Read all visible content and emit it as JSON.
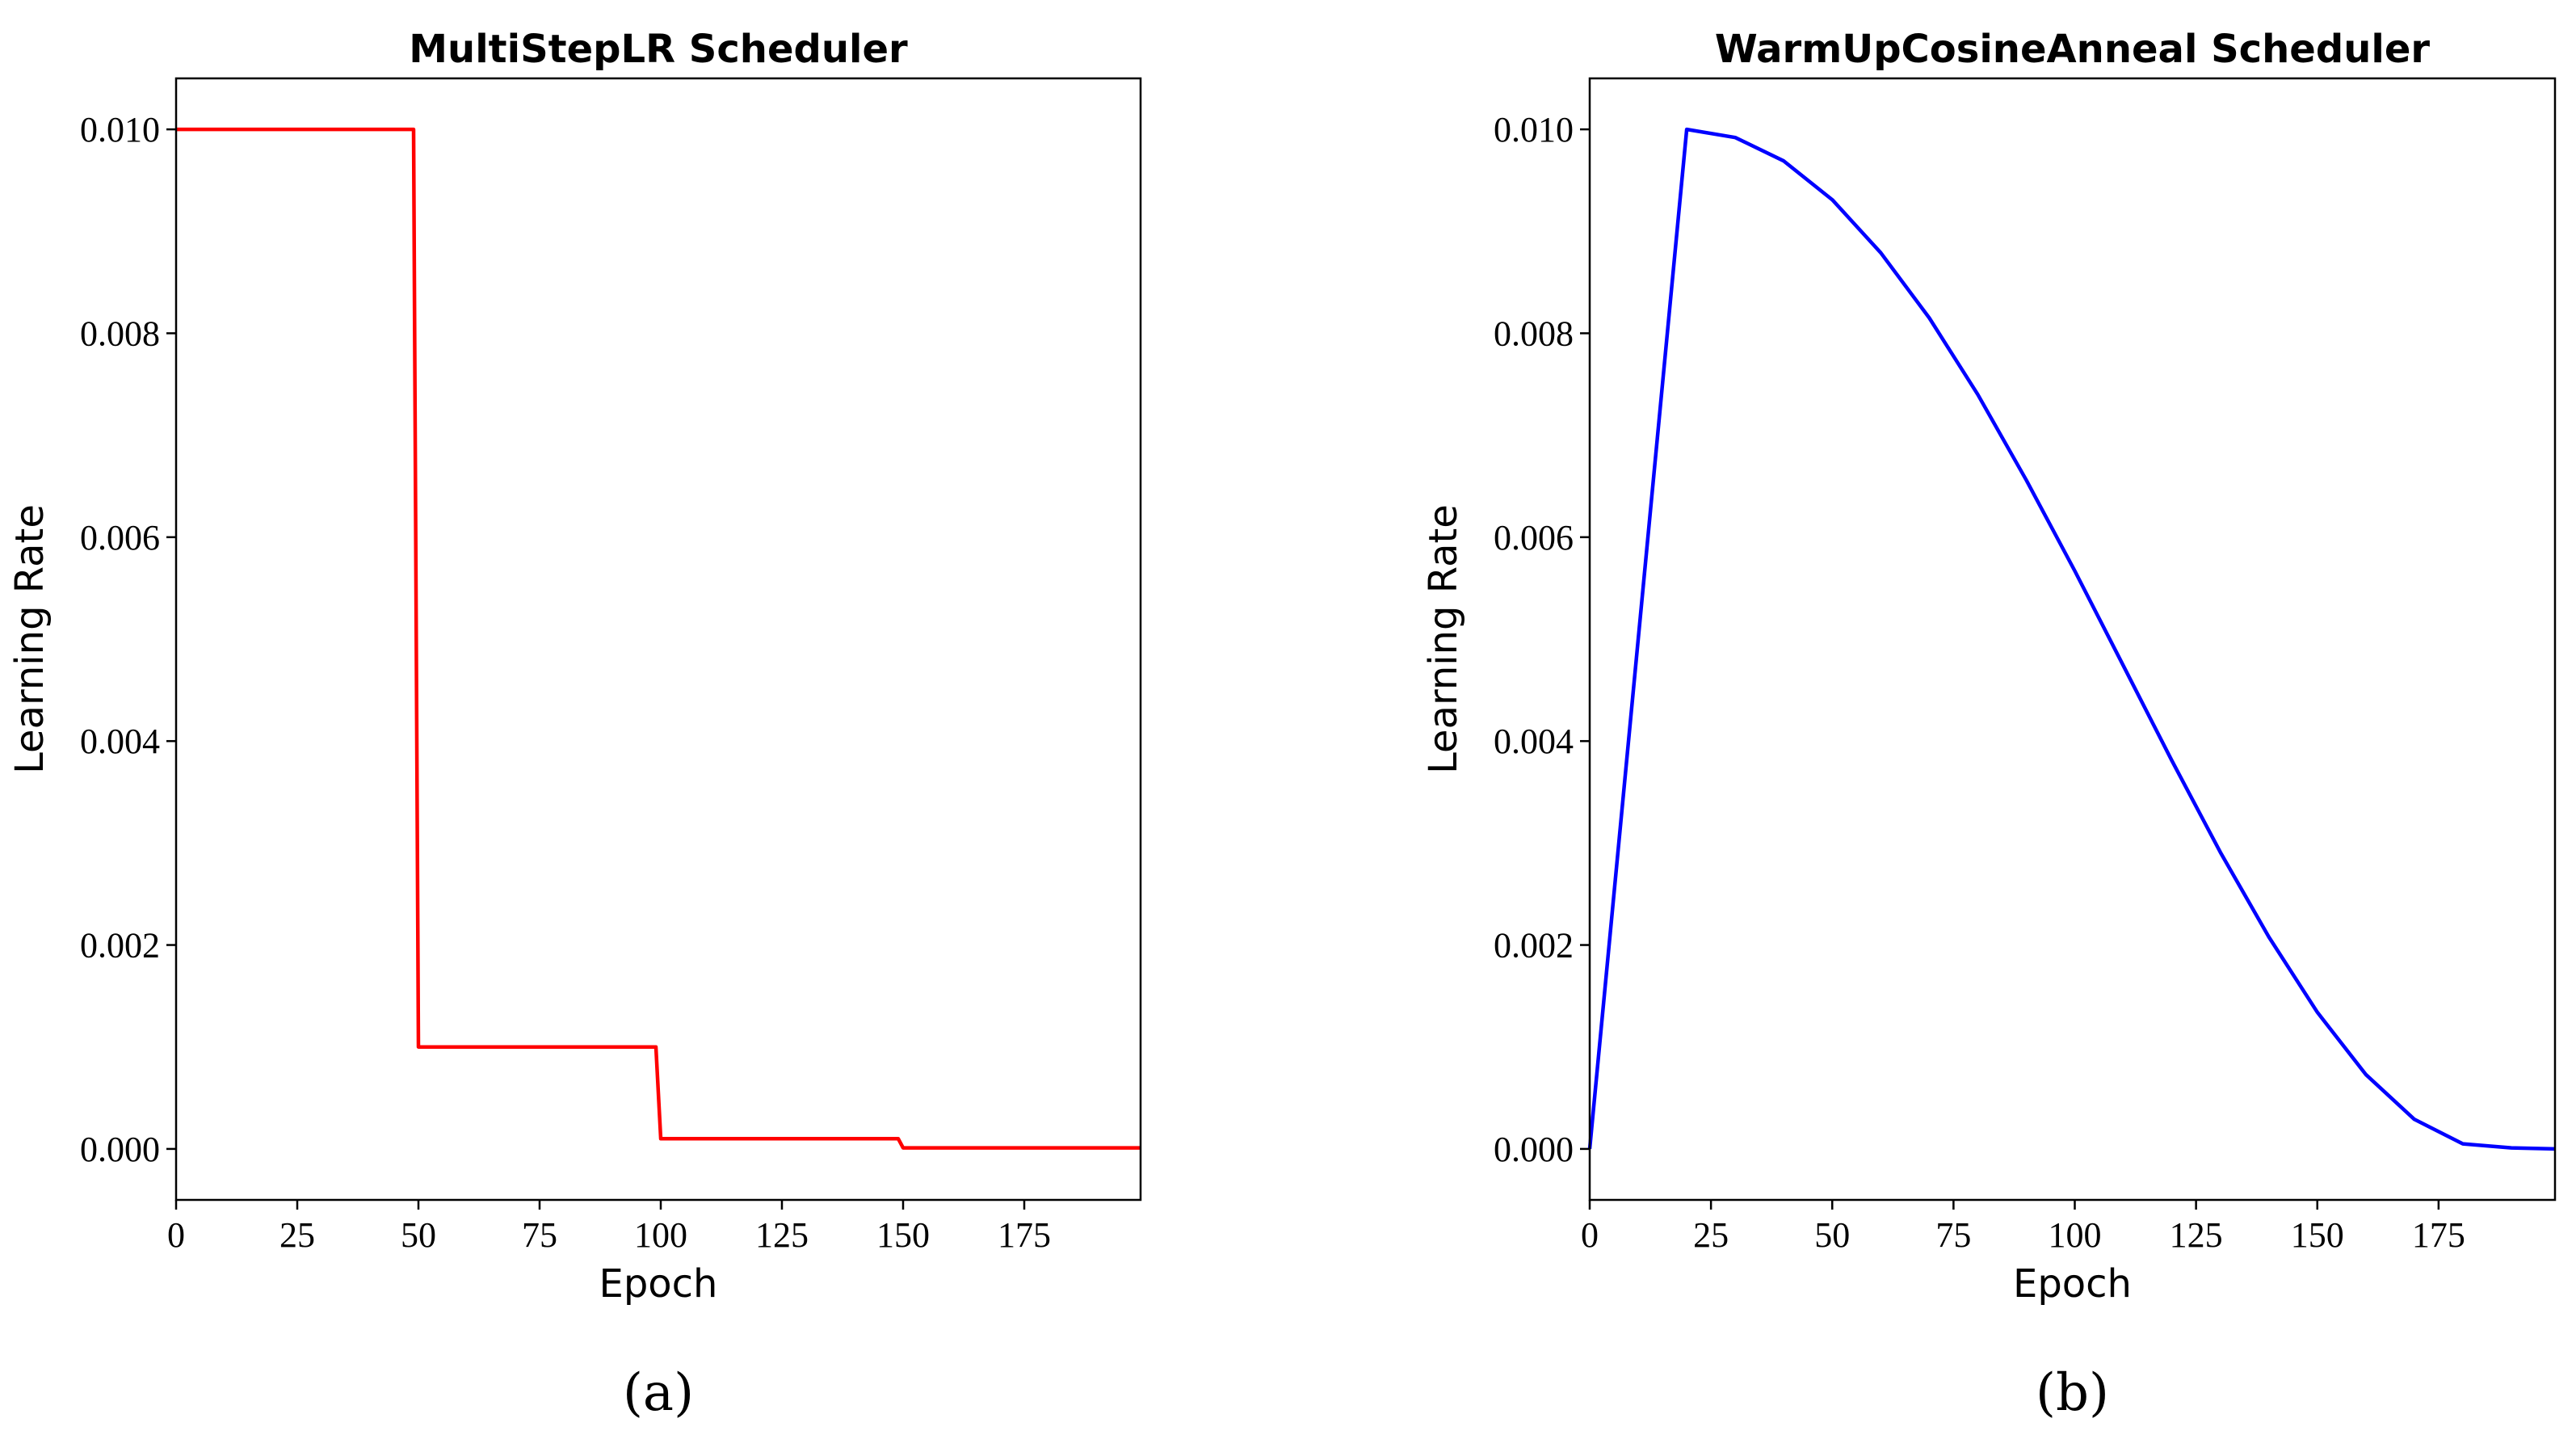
{
  "chart_data": [
    {
      "type": "line",
      "title": "MultiStepLR Scheduler",
      "xlabel": "Epoch",
      "ylabel": "Learning Rate",
      "caption": "(a)",
      "xlim": [
        0,
        199
      ],
      "ylim": [
        -0.0005,
        0.0105
      ],
      "xticks": [
        0,
        25,
        50,
        75,
        100,
        125,
        150,
        175
      ],
      "xtick_labels": [
        "0",
        "25",
        "50",
        "75",
        "100",
        "125",
        "150",
        "175"
      ],
      "yticks": [
        0.0,
        0.002,
        0.004,
        0.006,
        0.008,
        0.01
      ],
      "ytick_labels": [
        "0.000",
        "0.002",
        "0.004",
        "0.006",
        "0.008",
        "0.010"
      ],
      "grid": false,
      "series": [
        {
          "color": "#ff0000",
          "x": [
            0,
            49,
            50,
            99,
            100,
            149,
            150,
            199
          ],
          "y": [
            0.01,
            0.01,
            0.001,
            0.001,
            0.0001,
            0.0001,
            1e-05,
            1e-05
          ]
        }
      ]
    },
    {
      "type": "line",
      "title": "WarmUpCosineAnneal Scheduler",
      "xlabel": "Epoch",
      "ylabel": "Learning Rate",
      "caption": "(b)",
      "xlim": [
        0,
        199
      ],
      "ylim": [
        -0.0005,
        0.0105
      ],
      "xticks": [
        0,
        25,
        50,
        75,
        100,
        125,
        150,
        175
      ],
      "xtick_labels": [
        "0",
        "25",
        "50",
        "75",
        "100",
        "125",
        "150",
        "175"
      ],
      "yticks": [
        0.0,
        0.002,
        0.004,
        0.006,
        0.008,
        0.01
      ],
      "ytick_labels": [
        "0.000",
        "0.002",
        "0.004",
        "0.006",
        "0.008",
        "0.010"
      ],
      "grid": false,
      "series": [
        {
          "color": "#0000ff",
          "x": [
            0,
            20,
            30,
            40,
            50,
            60,
            70,
            80,
            90,
            100,
            110,
            120,
            130,
            140,
            150,
            160,
            170,
            180,
            190,
            199
          ],
          "y": [
            0.0,
            0.01,
            0.00992,
            0.00969,
            0.00931,
            0.00879,
            0.00815,
            0.0074,
            0.00656,
            0.00567,
            0.00474,
            0.00381,
            0.00291,
            0.00208,
            0.00134,
            0.00073,
            0.00029,
            5e-05,
            1e-05,
            0.0
          ]
        }
      ]
    }
  ]
}
